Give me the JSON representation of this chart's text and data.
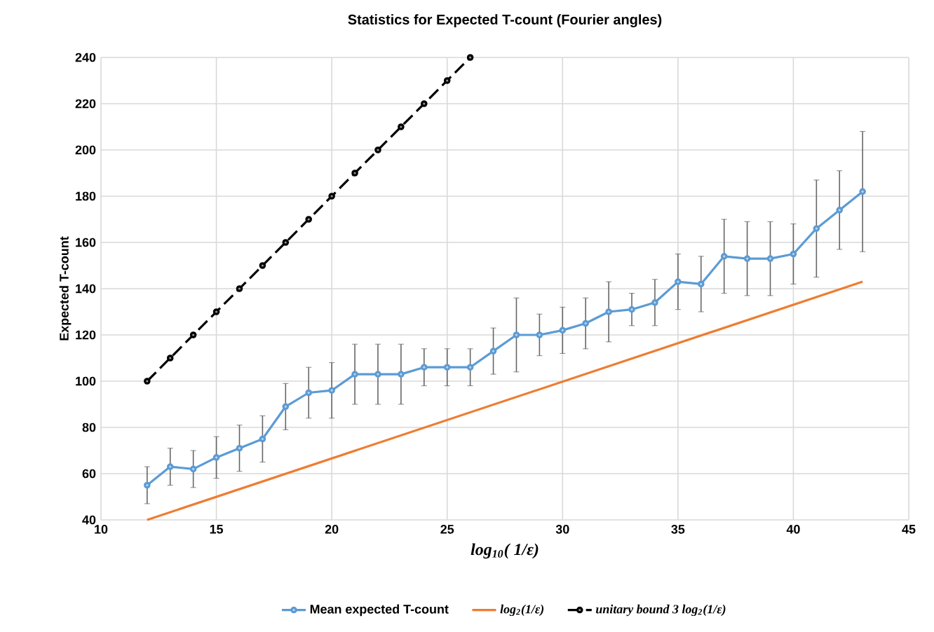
{
  "chart_data": {
    "type": "line",
    "title": "Statistics for Expected T-count (Fourier angles)",
    "xlabel": "log$_{10}$( 1/ε)",
    "ylabel": "Expected T-count",
    "xlim": [
      10,
      45
    ],
    "xticks": [
      10,
      15,
      20,
      25,
      30,
      35,
      40,
      45
    ],
    "ylim": [
      40,
      240
    ],
    "yticks": [
      40,
      60,
      80,
      100,
      120,
      140,
      160,
      180,
      200,
      220,
      240
    ],
    "grid": true,
    "legend": "bottom",
    "series": [
      {
        "name": "Mean expected T-count",
        "color": "#5b9bd5",
        "marker": "circle",
        "line_style": "solid",
        "x": [
          12,
          13,
          14,
          15,
          16,
          17,
          18,
          19,
          20,
          21,
          22,
          23,
          24,
          25,
          26,
          27,
          28,
          29,
          30,
          31,
          32,
          33,
          34,
          35,
          36,
          37,
          38,
          39,
          40,
          41,
          42,
          43
        ],
        "values": [
          55,
          63,
          62,
          67,
          71,
          75,
          89,
          95,
          96,
          103,
          103,
          103,
          106,
          106,
          106,
          113,
          120,
          120,
          122,
          125,
          130,
          131,
          134,
          143,
          142,
          154,
          153,
          153,
          155,
          166,
          174,
          182
        ],
        "errors": [
          8,
          8,
          8,
          9,
          10,
          10,
          10,
          11,
          12,
          13,
          13,
          13,
          8,
          8,
          8,
          10,
          16,
          9,
          10,
          11,
          13,
          7,
          10,
          12,
          12,
          16,
          16,
          16,
          13,
          21,
          17,
          26
        ]
      },
      {
        "name": "log$_{2}$(1/ε)",
        "color": "#ed7d31",
        "marker": "none",
        "line_style": "solid",
        "x": [
          12,
          43
        ],
        "values": [
          40,
          143
        ]
      },
      {
        "name": "unitary bound  3 log$_{2}$(1/ε)",
        "color": "#000000",
        "marker": "circle",
        "line_style": "dashed",
        "x": [
          12,
          13,
          14,
          15,
          16,
          17,
          18,
          19,
          20,
          21,
          22,
          23,
          24,
          25,
          26
        ],
        "values": [
          100,
          110,
          120,
          130,
          140,
          150,
          160,
          170,
          180,
          190,
          200,
          210,
          220,
          230,
          240
        ]
      }
    ]
  }
}
